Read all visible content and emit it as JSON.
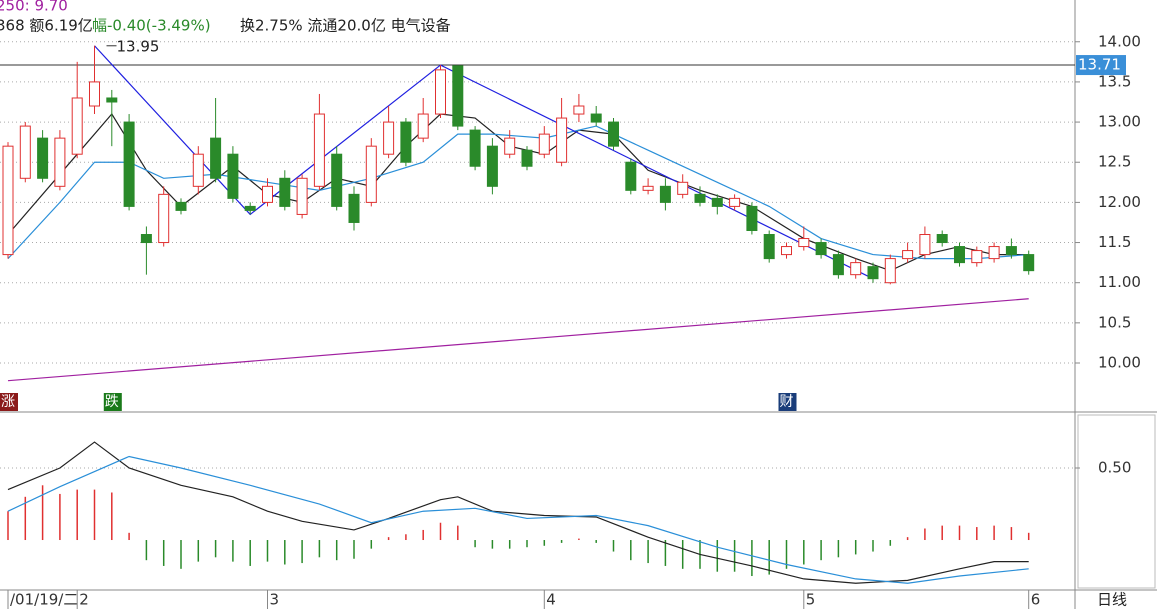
{
  "header": {
    "ma_text": "250: 9.70",
    "info_a": "368 额6.19亿",
    "info_b": "幅-0.40(-3.49%)",
    "info_c": "换2.75% 流通20.0亿 电气设备",
    "period": "日线"
  },
  "chart_data": [
    {
      "type": "candlestick",
      "categories": [
        "/01/19/二",
        null,
        null,
        null,
        "2",
        null,
        null,
        null,
        null,
        null,
        null,
        null,
        null,
        null,
        null,
        "3",
        null,
        null,
        null,
        null,
        null,
        null,
        null,
        null,
        null,
        null,
        null,
        null,
        null,
        null,
        null,
        "4",
        null,
        null,
        null,
        null,
        null,
        null,
        null,
        null,
        null,
        null,
        null,
        null,
        null,
        null,
        "5",
        null,
        null,
        null,
        null,
        null,
        null,
        null,
        null,
        null,
        null,
        null,
        null,
        "6"
      ],
      "open": [
        11.35,
        12.3,
        12.8,
        12.2,
        12.6,
        13.2,
        13.3,
        13.0,
        11.6,
        11.5,
        12.0,
        12.2,
        12.8,
        12.6,
        11.95,
        12.0,
        12.3,
        11.85,
        12.2,
        12.6,
        12.1,
        12.0,
        12.6,
        13.0,
        12.8,
        13.1,
        13.7,
        12.9,
        12.7,
        12.6,
        12.65,
        12.6,
        12.5,
        13.1,
        13.1,
        13.0,
        12.5,
        12.15,
        12.2,
        12.1,
        12.1,
        12.05,
        11.95,
        11.95,
        11.6,
        11.35,
        11.45,
        11.5,
        11.35,
        11.1,
        11.2,
        11.0,
        11.3,
        11.35,
        11.6,
        11.45,
        11.25,
        11.3,
        11.45,
        11.35
      ],
      "close": [
        12.7,
        12.95,
        12.3,
        12.8,
        13.3,
        13.5,
        13.25,
        11.95,
        11.5,
        12.1,
        11.9,
        12.6,
        12.3,
        12.05,
        11.9,
        12.2,
        11.95,
        12.3,
        13.1,
        11.95,
        11.75,
        12.7,
        13.0,
        12.5,
        13.1,
        13.65,
        12.95,
        12.45,
        12.2,
        12.8,
        12.45,
        12.85,
        13.05,
        13.2,
        13.0,
        12.7,
        12.15,
        12.2,
        12.0,
        12.25,
        12.0,
        11.95,
        12.05,
        11.65,
        11.3,
        11.45,
        11.55,
        11.35,
        11.1,
        11.25,
        11.05,
        11.3,
        11.4,
        11.6,
        11.5,
        11.25,
        11.4,
        11.45,
        11.35,
        11.15
      ],
      "high": [
        12.75,
        13.0,
        12.9,
        12.9,
        13.75,
        13.95,
        13.4,
        13.1,
        11.7,
        12.2,
        12.05,
        12.7,
        13.3,
        12.7,
        12.0,
        12.3,
        12.4,
        12.35,
        13.35,
        12.7,
        12.2,
        12.8,
        13.2,
        13.05,
        13.3,
        13.71,
        13.7,
        12.95,
        12.8,
        12.9,
        12.7,
        12.95,
        13.3,
        13.35,
        13.2,
        13.05,
        12.55,
        12.3,
        12.3,
        12.35,
        12.2,
        12.1,
        12.1,
        12.0,
        11.65,
        11.5,
        11.7,
        11.55,
        11.4,
        11.3,
        11.25,
        11.35,
        11.5,
        11.7,
        11.65,
        11.5,
        11.45,
        11.5,
        11.55,
        11.4
      ],
      "low": [
        11.3,
        12.25,
        12.25,
        12.15,
        12.55,
        13.1,
        12.7,
        11.9,
        11.1,
        11.45,
        11.85,
        12.1,
        12.25,
        12.0,
        11.85,
        11.95,
        11.9,
        11.8,
        12.15,
        11.9,
        11.65,
        11.95,
        12.55,
        12.45,
        12.75,
        13.05,
        12.9,
        12.4,
        12.1,
        12.55,
        12.4,
        12.55,
        12.45,
        13.0,
        12.95,
        12.65,
        12.1,
        12.1,
        11.9,
        12.05,
        11.95,
        11.85,
        11.9,
        11.6,
        11.25,
        11.3,
        11.4,
        11.3,
        11.05,
        11.05,
        11.0,
        10.98,
        11.25,
        11.3,
        11.45,
        11.2,
        11.2,
        11.25,
        11.3,
        11.1
      ],
      "red": "#e03030",
      "green": "#2a8a2a",
      "ylim": [
        9.39,
        14.52
      ],
      "yticks": [
        {
          "value": 14,
          "label": "14.00"
        },
        13.5,
        {
          "value": 13,
          "label": "13.00"
        },
        12.5,
        {
          "value": 12,
          "label": "12.00"
        },
        11.5,
        {
          "value": 11,
          "label": "11.00"
        },
        10.5,
        {
          "value": 10,
          "label": "10.00"
        }
      ],
      "grid": true,
      "series": [
        {
          "color": "#222222",
          "x": [
            0,
            4,
            6,
            8,
            10,
            13,
            15,
            17,
            19,
            21,
            23,
            25,
            27,
            29,
            31,
            33,
            35,
            37,
            40,
            43,
            46,
            49,
            51,
            53,
            55,
            57,
            59
          ],
          "values": [
            11.6,
            12.6,
            13.1,
            12.4,
            11.95,
            12.45,
            12.1,
            12.0,
            12.3,
            12.2,
            12.7,
            13.1,
            13.05,
            12.7,
            12.6,
            12.9,
            12.85,
            12.4,
            12.15,
            11.95,
            11.55,
            11.3,
            11.15,
            11.35,
            11.45,
            11.35,
            11.35
          ]
        },
        {
          "color": "#2a8fd8",
          "x": [
            0,
            3,
            5,
            7,
            9,
            12,
            15,
            18,
            21,
            24,
            26,
            28,
            31,
            34,
            37,
            41,
            44,
            47,
            50,
            53,
            56,
            59
          ],
          "values": [
            11.3,
            12.0,
            12.5,
            12.5,
            12.3,
            12.35,
            12.25,
            12.15,
            12.3,
            12.5,
            12.85,
            12.85,
            12.8,
            12.95,
            12.65,
            12.25,
            11.95,
            11.55,
            11.35,
            11.3,
            11.3,
            11.35
          ]
        },
        {
          "color": "#a020a0",
          "x": [
            0,
            59
          ],
          "values": [
            9.78,
            10.8
          ]
        },
        {
          "color": "#2020e0",
          "x": [
            5,
            14,
            25,
            50
          ],
          "values": [
            13.95,
            11.85,
            13.71,
            11.05
          ]
        }
      ],
      "peak_label": {
        "index": 5,
        "value": 13.95,
        "label": "13.95"
      },
      "last_price": {
        "value": 13.71,
        "label": "13.71"
      },
      "markers": [
        {
          "index": 0,
          "label": "涨",
          "color": "#8b1a1a"
        },
        {
          "index": 6,
          "label": "跌",
          "color": "#1a7a1a"
        },
        {
          "index": 45,
          "label": "财",
          "color": "#1a3d7a"
        }
      ]
    },
    {
      "type": "macd",
      "ylim": [
        -0.347,
        0.868
      ],
      "yticks": [
        {
          "value": 0.5,
          "label": "0.50"
        }
      ],
      "values": [
        0.2,
        0.3,
        0.38,
        0.32,
        0.35,
        0.35,
        0.33,
        0.05,
        -0.14,
        -0.18,
        -0.2,
        -0.15,
        -0.12,
        -0.15,
        -0.18,
        -0.15,
        -0.17,
        -0.16,
        -0.12,
        -0.14,
        -0.13,
        -0.06,
        0.02,
        0.04,
        0.07,
        0.12,
        0.1,
        -0.05,
        -0.06,
        -0.06,
        -0.05,
        -0.04,
        -0.02,
        0.01,
        -0.02,
        -0.08,
        -0.14,
        -0.16,
        -0.18,
        -0.2,
        -0.2,
        -0.22,
        -0.22,
        -0.25,
        -0.24,
        -0.2,
        -0.17,
        -0.14,
        -0.12,
        -0.1,
        -0.08,
        -0.04,
        0.02,
        0.08,
        0.1,
        0.1,
        0.09,
        0.1,
        0.09,
        0.05
      ],
      "red": "#e03030",
      "green": "#2a8a2a",
      "series": [
        {
          "color": "#222222",
          "x": [
            0,
            3,
            5,
            7,
            10,
            13,
            15,
            17,
            20,
            22,
            25,
            26,
            28,
            31,
            34,
            37,
            40,
            43,
            46,
            49,
            52,
            55,
            57,
            59
          ],
          "values": [
            0.35,
            0.5,
            0.68,
            0.5,
            0.38,
            0.3,
            0.2,
            0.13,
            0.07,
            0.15,
            0.28,
            0.3,
            0.2,
            0.17,
            0.16,
            0.02,
            -0.1,
            -0.18,
            -0.27,
            -0.3,
            -0.28,
            -0.2,
            -0.15,
            -0.15
          ]
        },
        {
          "color": "#2a8fd8",
          "x": [
            0,
            3,
            7,
            10,
            14,
            18,
            21,
            24,
            27,
            30,
            34,
            37,
            41,
            45,
            49,
            52,
            55,
            59
          ],
          "values": [
            0.2,
            0.37,
            0.58,
            0.5,
            0.38,
            0.25,
            0.12,
            0.2,
            0.22,
            0.15,
            0.17,
            0.1,
            -0.05,
            -0.17,
            -0.27,
            -0.3,
            -0.25,
            -0.2
          ]
        }
      ]
    }
  ]
}
